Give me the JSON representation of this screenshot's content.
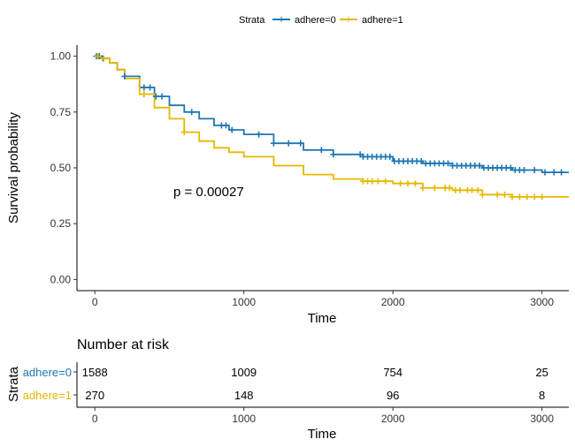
{
  "chart_data": {
    "type": "line",
    "legend": {
      "title": "Strata",
      "position": "top"
    },
    "xlabel": "Time",
    "ylabel": "Survival probability",
    "xlim": [
      -120,
      3180
    ],
    "ylim": [
      -0.05,
      1.05
    ],
    "x_ticks": [
      "0",
      "1000",
      "2000",
      "3000"
    ],
    "y_ticks": [
      "0.00",
      "0.25",
      "0.50",
      "0.75",
      "1.00"
    ],
    "annotation": "p = 0.00027",
    "series": [
      {
        "name": "adhere=0",
        "color": "#1f77b4",
        "x": [
          0,
          50,
          100,
          150,
          200,
          300,
          400,
          500,
          600,
          700,
          800,
          900,
          1000,
          1200,
          1400,
          1600,
          1800,
          2000,
          2200,
          2400,
          2600,
          2800,
          3000,
          3180
        ],
        "y": [
          1.0,
          0.99,
          0.97,
          0.94,
          0.91,
          0.86,
          0.82,
          0.78,
          0.75,
          0.72,
          0.69,
          0.67,
          0.65,
          0.61,
          0.58,
          0.56,
          0.55,
          0.53,
          0.52,
          0.51,
          0.5,
          0.49,
          0.48,
          0.48
        ],
        "censor_x": [
          10,
          30,
          55,
          200,
          330,
          370,
          410,
          450,
          650,
          850,
          880,
          920,
          1100,
          1200,
          1300,
          1380,
          1520,
          1600,
          1780,
          1800,
          1830,
          1860,
          1890,
          1920,
          1950,
          1980,
          2010,
          2040,
          2070,
          2100,
          2130,
          2160,
          2190,
          2220,
          2250,
          2280,
          2310,
          2340,
          2370,
          2400,
          2430,
          2460,
          2490,
          2520,
          2550,
          2580,
          2610,
          2640,
          2670,
          2700,
          2730,
          2760,
          2790,
          2820,
          2850,
          2880,
          2950,
          3020,
          3080,
          3130
        ]
      },
      {
        "name": "adhere=1",
        "color": "#e6b800",
        "x": [
          0,
          50,
          100,
          150,
          200,
          300,
          400,
          500,
          600,
          700,
          800,
          900,
          1000,
          1200,
          1400,
          1600,
          1800,
          2000,
          2200,
          2400,
          2600,
          2800,
          3000,
          3180
        ],
        "y": [
          1.0,
          0.99,
          0.97,
          0.94,
          0.9,
          0.83,
          0.77,
          0.72,
          0.66,
          0.62,
          0.59,
          0.57,
          0.55,
          0.51,
          0.47,
          0.45,
          0.44,
          0.43,
          0.41,
          0.4,
          0.38,
          0.37,
          0.37,
          0.37
        ],
        "censor_x": [
          20,
          60,
          330,
          600,
          1800,
          1830,
          1860,
          1900,
          1950,
          2050,
          2100,
          2150,
          2200,
          2280,
          2350,
          2380,
          2420,
          2450,
          2500,
          2530,
          2570,
          2600,
          2700,
          2750,
          2800,
          2850,
          2900,
          2950,
          3000
        ]
      }
    ]
  },
  "risk_table": {
    "title": "Number at risk",
    "y_title": "Strata",
    "xlabel": "Time",
    "x_ticks": [
      "0",
      "1000",
      "2000",
      "3000"
    ],
    "rows": [
      {
        "name": "adhere=0",
        "color": "#1f77b4",
        "values": [
          "1588",
          "1009",
          "754",
          "25"
        ]
      },
      {
        "name": "adhere=1",
        "color": "#e6b800",
        "values": [
          "270",
          "148",
          "96",
          "8"
        ]
      }
    ]
  }
}
